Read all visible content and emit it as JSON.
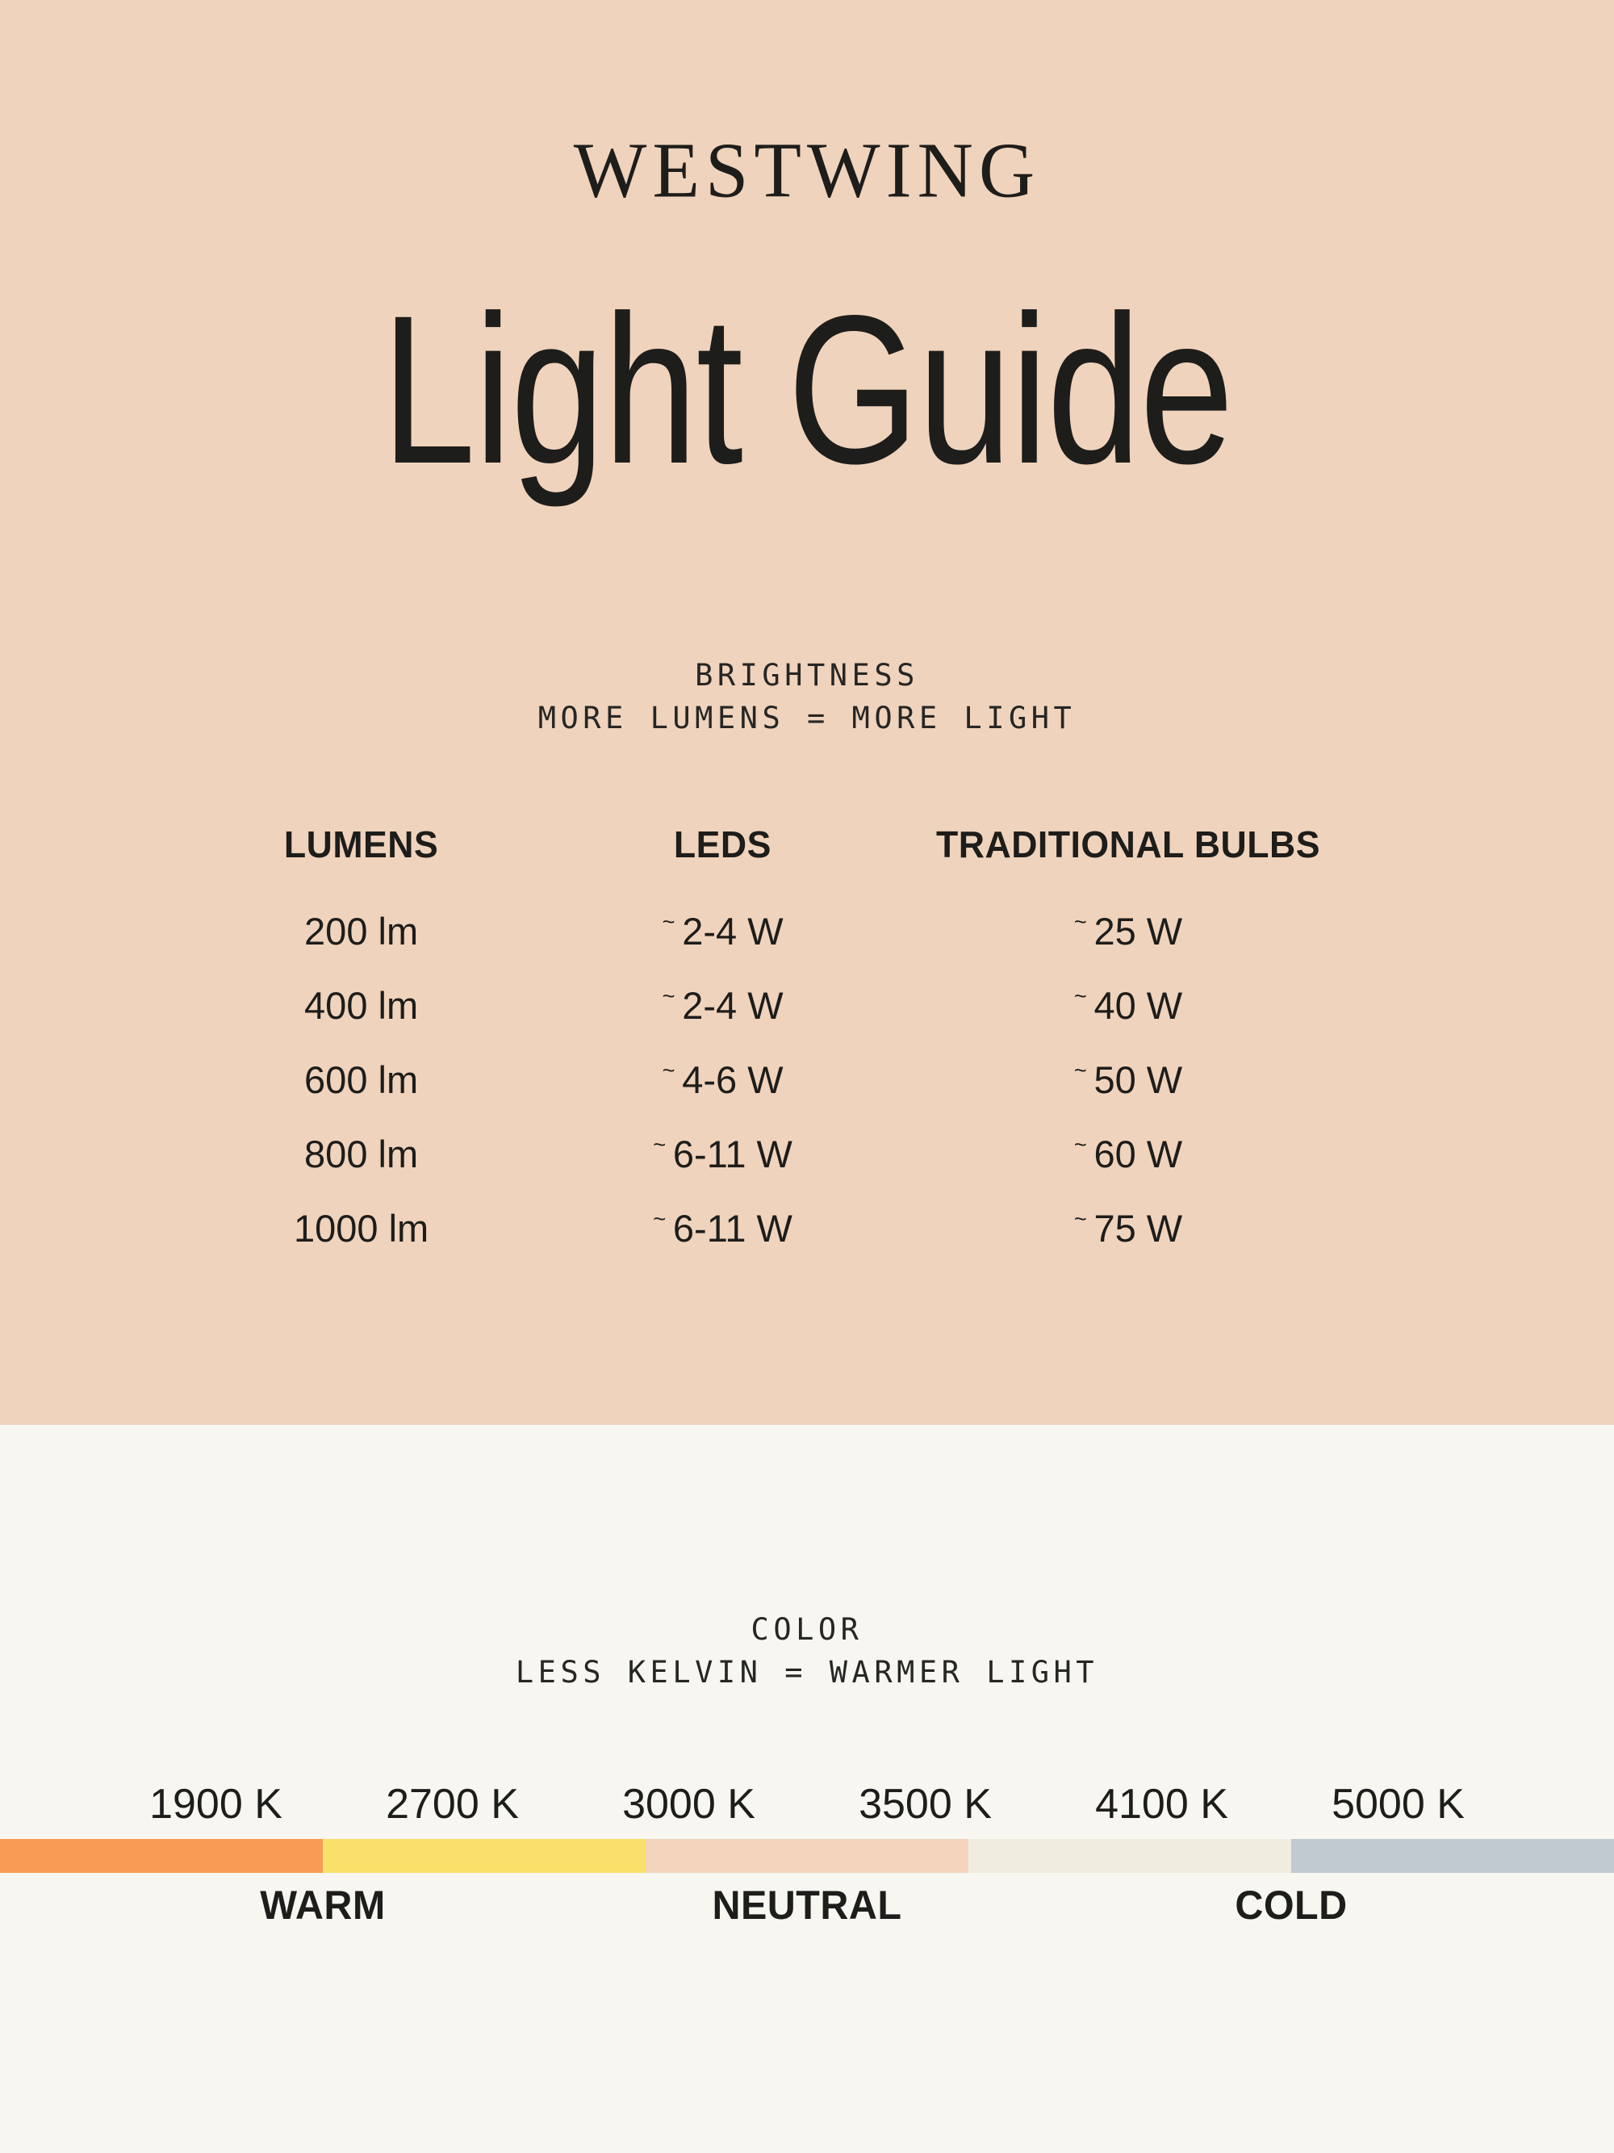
{
  "brand": {
    "logo": "WESTWING"
  },
  "title": "Light Guide",
  "colors": {
    "top_background": "#F0D3BC",
    "bottom_background": "#F7F6F1",
    "text": "#1D1D1B"
  },
  "brightness_section": {
    "heading": "BRIGHTNESS",
    "subheading": "MORE LUMENS = MORE LIGHT",
    "table": {
      "columns": [
        "LUMENS",
        "LEDS",
        "TRADITIONAL BULBS"
      ],
      "approx_symbol": "~",
      "rows": [
        {
          "lumens": "200 lm",
          "leds": "2-4 W",
          "traditional": "25 W"
        },
        {
          "lumens": "400 lm",
          "leds": "2-4 W",
          "traditional": "40 W"
        },
        {
          "lumens": "600 lm",
          "leds": "4-6 W",
          "traditional": "50 W"
        },
        {
          "lumens": "800 lm",
          "leds": "6-11 W",
          "traditional": "60 W"
        },
        {
          "lumens": "1000 lm",
          "leds": "6-11 W",
          "traditional": "75 W"
        }
      ]
    }
  },
  "color_section": {
    "heading": "COLOR",
    "subheading": "LESS KELVIN = WARMER LIGHT",
    "kelvin_labels": [
      "1900 K",
      "2700 K",
      "3000 K",
      "3500 K",
      "4100 K",
      "5000 K"
    ],
    "scale_segments": [
      {
        "name": "warm-orange",
        "color": "#F89B55"
      },
      {
        "name": "warm-yellow",
        "color": "#F8E06A"
      },
      {
        "name": "neutral-beige",
        "color": "#F2D5BC"
      },
      {
        "name": "neutral-cream",
        "color": "#F0ECDF"
      },
      {
        "name": "cold-bluegray",
        "color": "#C1C9D1"
      }
    ],
    "temperature_labels": [
      "WARM",
      "NEUTRAL",
      "COLD"
    ]
  }
}
